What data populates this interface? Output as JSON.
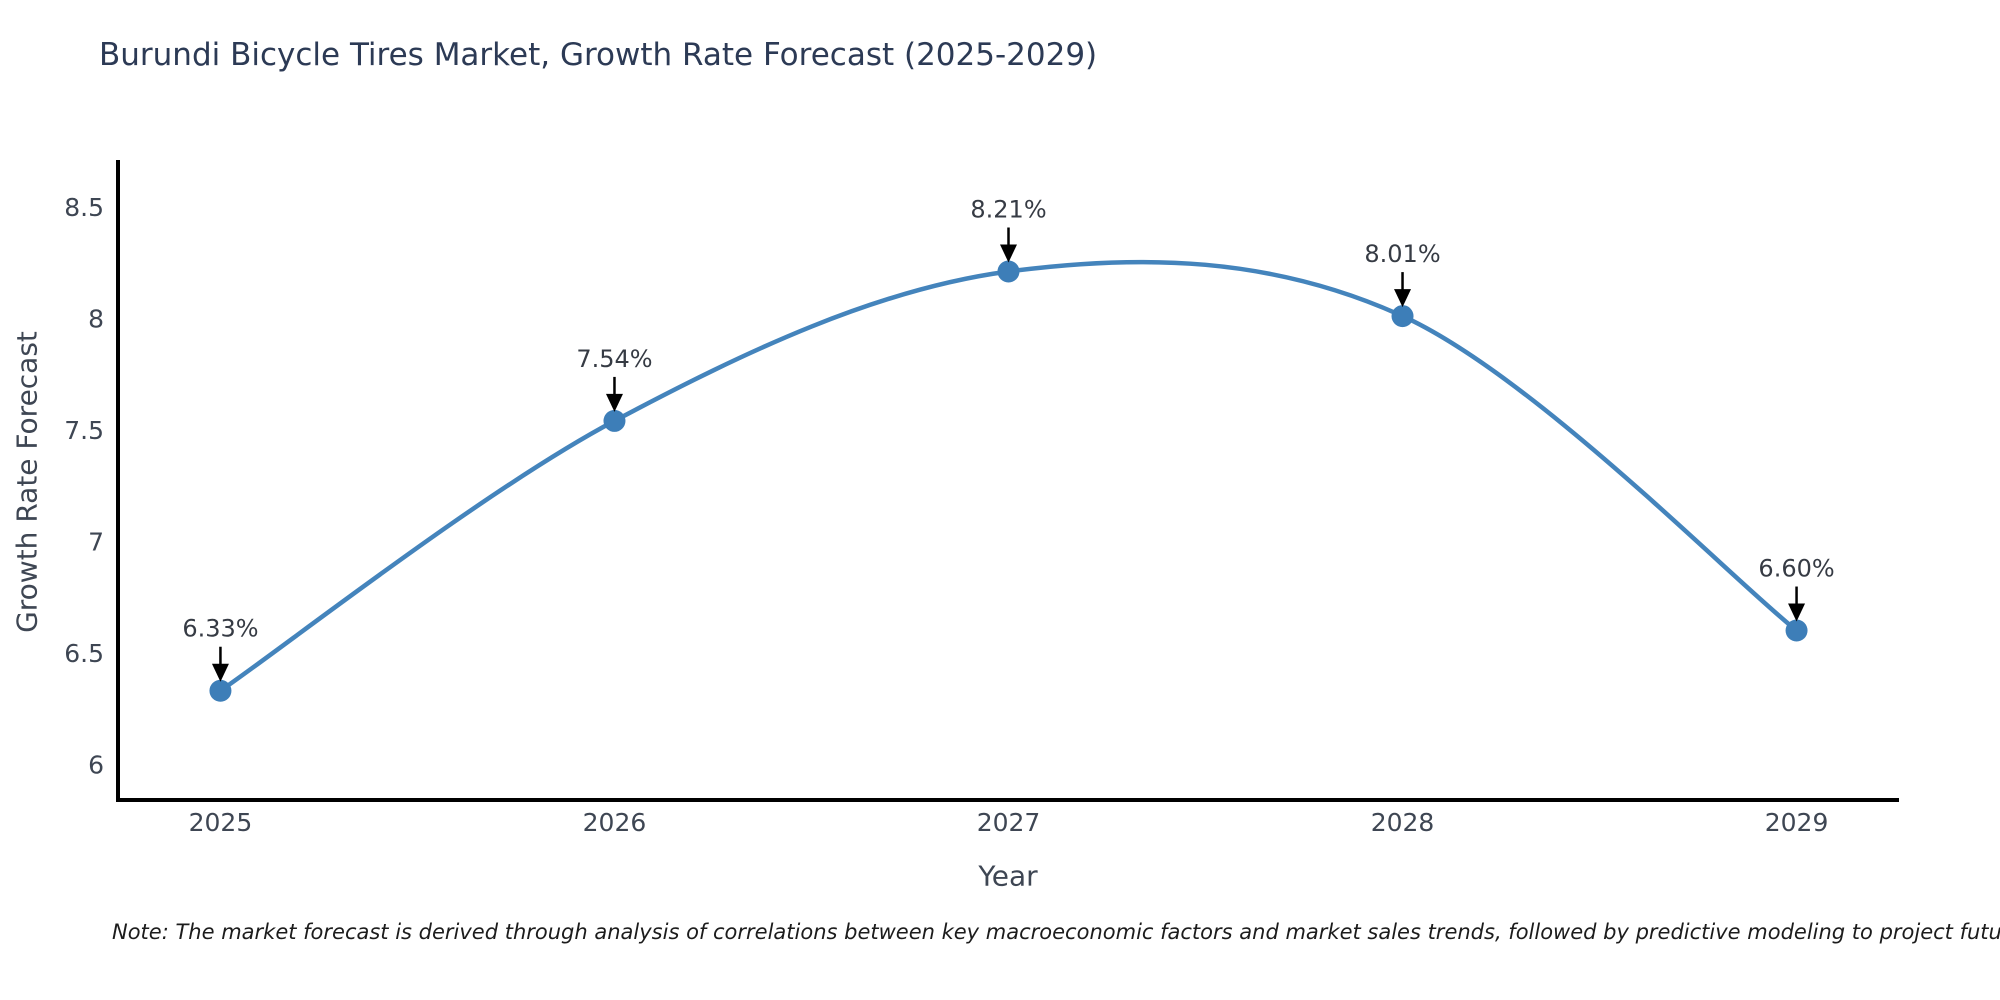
{
  "chart_data": {
    "type": "line",
    "title": "Burundi Bicycle Tires Market, Growth Rate Forecast (2025-2029)",
    "xlabel": "Year",
    "ylabel": "Growth Rate Forecast",
    "x": [
      2025,
      2026,
      2027,
      2028,
      2029
    ],
    "y": [
      6.33,
      7.54,
      8.21,
      8.01,
      6.6
    ],
    "point_labels": [
      "6.33%",
      "7.54%",
      "8.21%",
      "8.01%",
      "6.60%"
    ],
    "xtick_labels": [
      "2025",
      "2026",
      "2027",
      "2028",
      "2029"
    ],
    "ytick_values": [
      6,
      6.5,
      7,
      7.5,
      8,
      8.5
    ],
    "ytick_labels": [
      "6",
      "6.5",
      "7",
      "7.5",
      "8",
      "8.5"
    ],
    "xlim": [
      2024.74,
      2029.26
    ],
    "ylim": [
      5.84,
      8.71
    ],
    "line_shape": "spline",
    "grid": false,
    "legend": "none",
    "colors": {
      "line": "#4484bc",
      "marker": "#3d7eb8",
      "axis": "#000000",
      "arrow": "#000000",
      "title_text": "#2c3a55",
      "tick_text": "#3e4653",
      "annotation_text": "#363b44"
    },
    "note": "Note: The market forecast is derived through analysis of correlations between key macroeconomic factors and market sales trends, followed by predictive modeling to project future sales"
  }
}
